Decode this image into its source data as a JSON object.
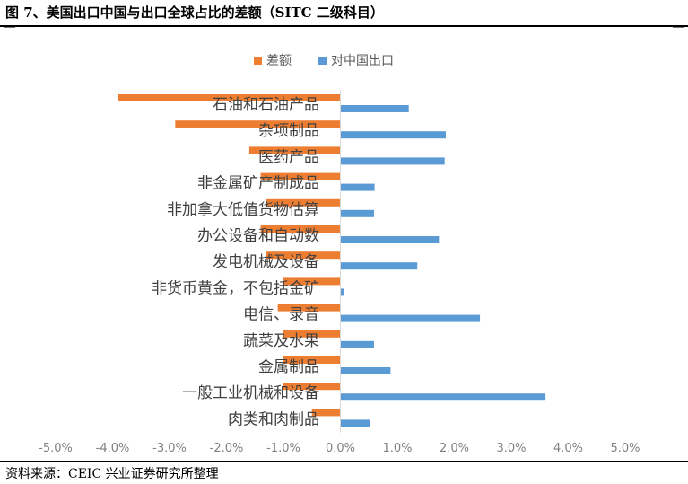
{
  "title": "图 7、美国出口中国与出口全球占比的差额（SITC 二级科目）",
  "source": "资料来源：CEIC   兴业证券研究所整理",
  "chart_data": {
    "type": "bar",
    "orientation": "horizontal",
    "categories": [
      "石油和石油产品",
      "杂项制品",
      "医药产品",
      "非金属矿产制成品",
      "非加拿大低值货物估算",
      "办公设备和自动数",
      "发电机械及设备",
      "非货币黄金，不包括金矿",
      "电信、录音",
      "蔬菜及水果",
      "金属制品",
      "一般工业机械和设备",
      "肉类和肉制品"
    ],
    "series": [
      {
        "name": "差额",
        "color": "#ED7D31",
        "values": [
          -3.9,
          -2.9,
          -1.6,
          -1.4,
          -1.3,
          -1.4,
          -1.3,
          -1.0,
          -1.1,
          -1.0,
          -1.0,
          -1.0,
          -0.5
        ]
      },
      {
        "name": "对中国出口",
        "color": "#5B9BD5",
        "values": [
          1.2,
          1.85,
          1.83,
          0.6,
          0.59,
          1.73,
          1.35,
          0.07,
          2.45,
          0.59,
          0.88,
          3.6,
          0.52
        ]
      }
    ],
    "xlim": [
      -5.0,
      5.0
    ],
    "x_ticks": [
      "-5.0%",
      "-4.0%",
      "-3.0%",
      "-2.0%",
      "-1.0%",
      "0.0%",
      "1.0%",
      "2.0%",
      "3.0%",
      "4.0%",
      "5.0%"
    ],
    "legend_position": "top",
    "grid": false
  }
}
